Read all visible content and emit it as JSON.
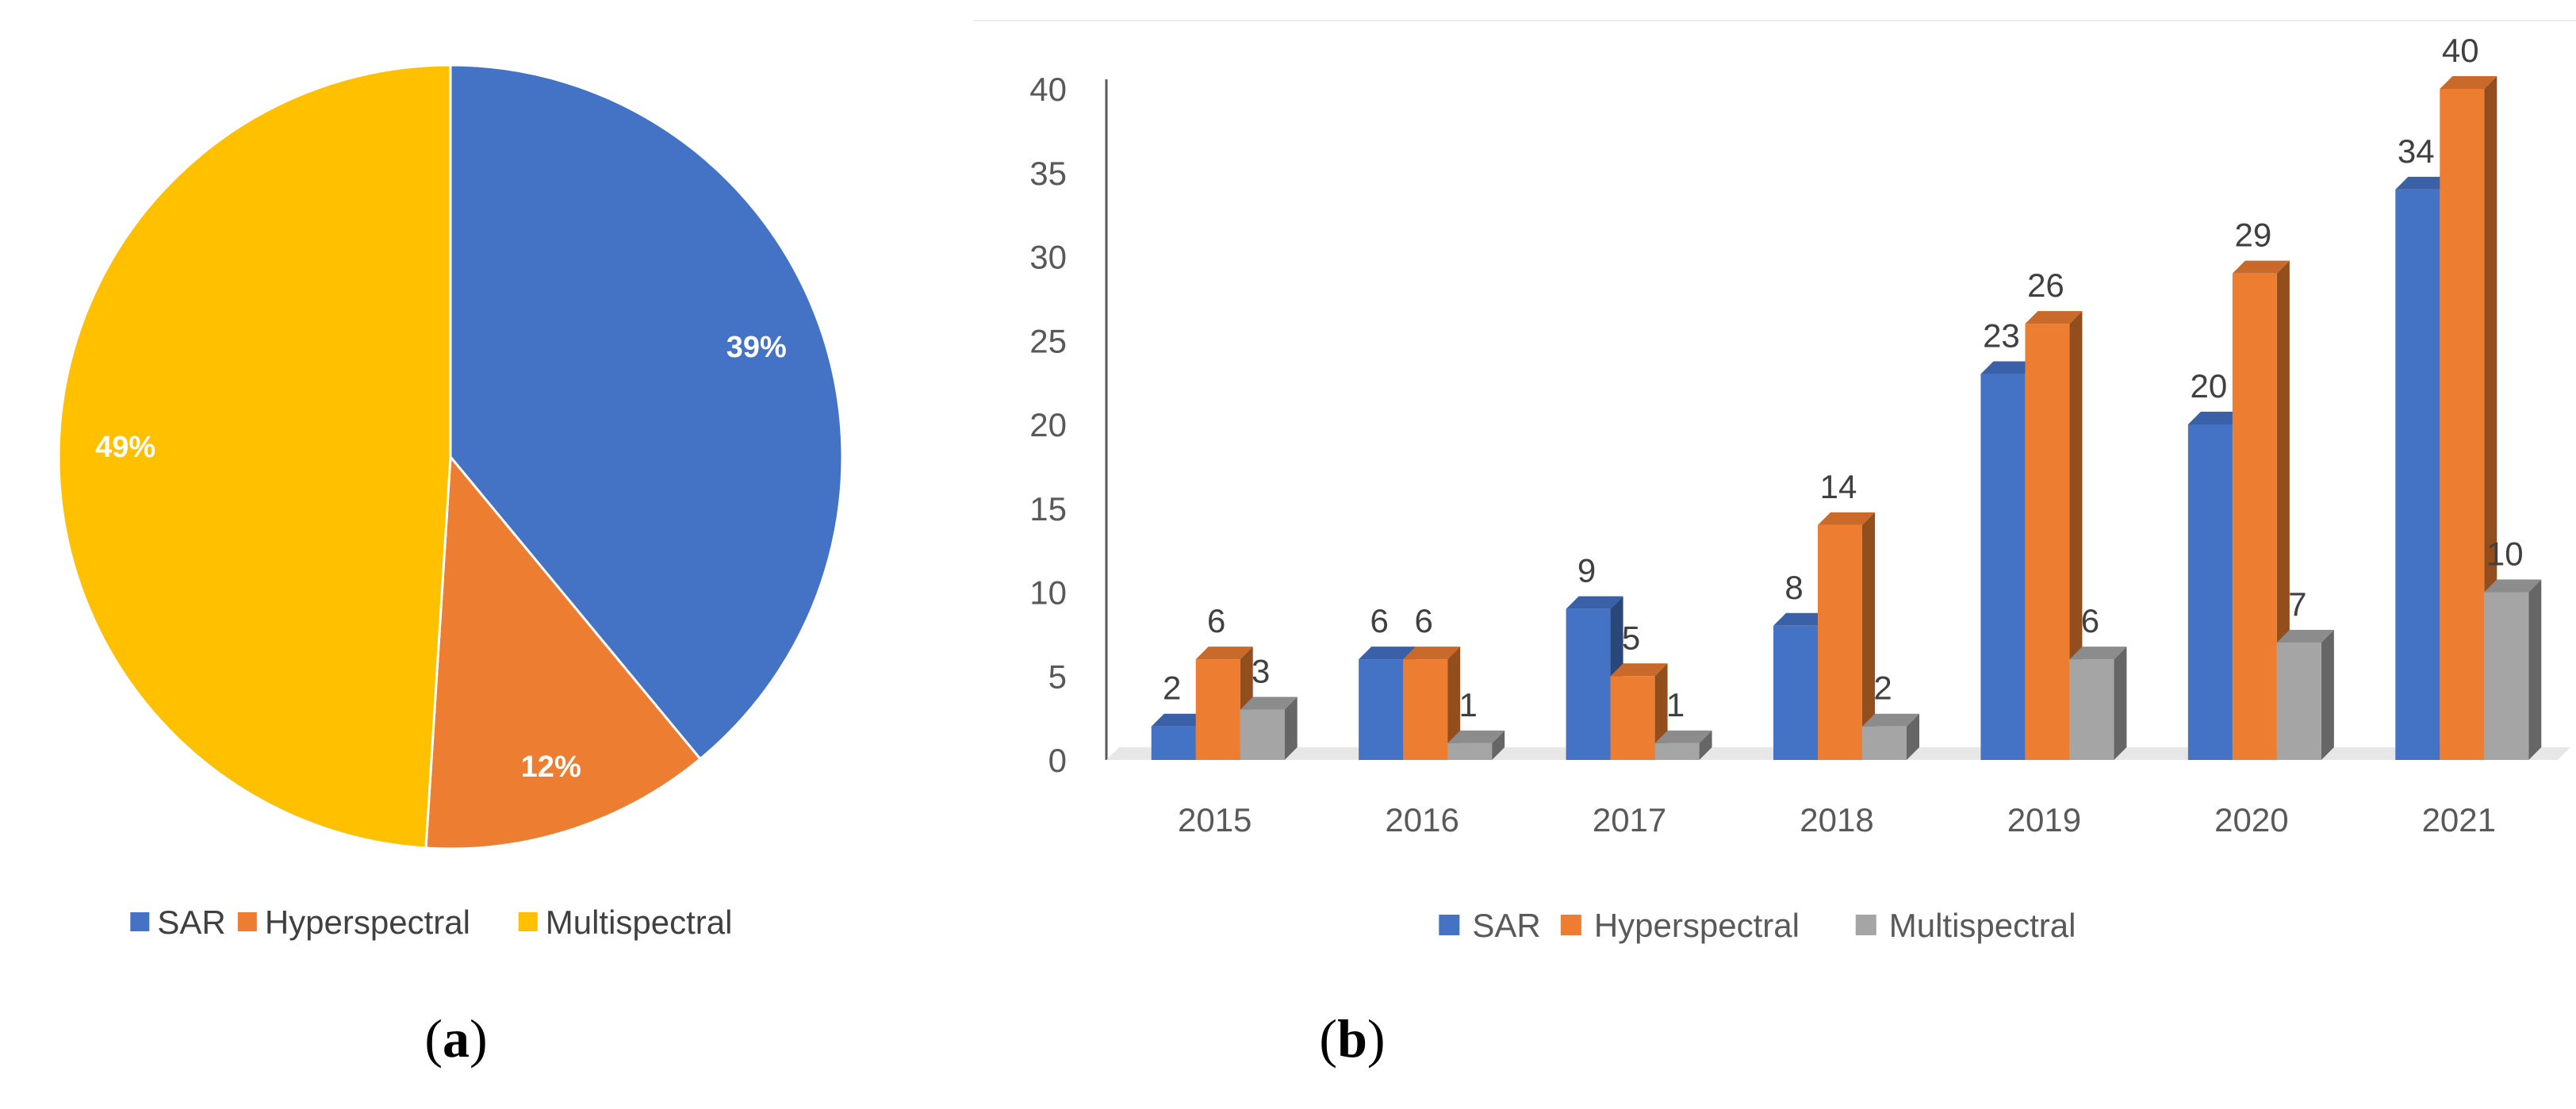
{
  "colors": {
    "sar": "#4472C4",
    "hyperspectral": "#ED7D31",
    "multispectral_pie": "#FFC000",
    "multispectral_bar": "#A5A5A5"
  },
  "chart_data": [
    {
      "type": "pie",
      "panel_label": "a",
      "slices": [
        {
          "name": "SAR",
          "value": 39,
          "label": "39%"
        },
        {
          "name": "Hyperspectral",
          "value": 12,
          "label": "12%"
        },
        {
          "name": "Multispectral",
          "value": 49,
          "label": "49%"
        }
      ],
      "legend": [
        "SAR",
        "Hyperspectral",
        "Multispectral"
      ],
      "legend_position": "bottom"
    },
    {
      "type": "bar",
      "style": "3d-clustered-column",
      "panel_label": "b",
      "categories": [
        "2015",
        "2016",
        "2017",
        "2018",
        "2019",
        "2020",
        "2021"
      ],
      "series": [
        {
          "name": "SAR",
          "values": [
            2,
            6,
            9,
            8,
            23,
            20,
            34
          ]
        },
        {
          "name": "Hyperspectral",
          "values": [
            6,
            6,
            5,
            14,
            26,
            29,
            40
          ]
        },
        {
          "name": "Multispectral",
          "values": [
            3,
            1,
            1,
            2,
            6,
            7,
            10
          ]
        }
      ],
      "ylim": [
        0,
        40
      ],
      "yticks": [
        0,
        5,
        10,
        15,
        20,
        25,
        30,
        35,
        40
      ],
      "grid": false,
      "legend_position": "bottom"
    }
  ]
}
